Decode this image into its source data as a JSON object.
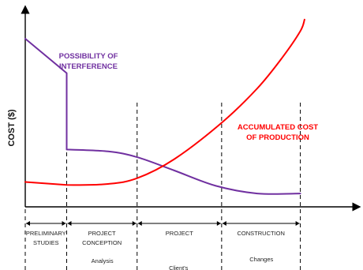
{
  "chart_data": {
    "type": "line",
    "ylabel": "COST ($)",
    "xlabel": "",
    "xlim": [
      0,
      4
    ],
    "ylim": [
      0,
      100
    ],
    "phases": [
      {
        "lines": [
          "PRELIMINARY",
          "STUDIES"
        ],
        "start": 0,
        "end": 0.5
      },
      {
        "lines": [
          "PROJECT",
          "CONCEPTION"
        ],
        "start": 0.5,
        "end": 1.35
      },
      {
        "lines": [
          "PROJECT"
        ],
        "start": 1.35,
        "end": 2.37
      },
      {
        "lines": [
          "CONSTRUCTION"
        ],
        "start": 2.37,
        "end": 3.32
      }
    ],
    "notes": [
      {
        "text": "Analysis",
        "x": 0.93
      },
      {
        "text": "Client's",
        "x": 1.85
      },
      {
        "text": "Changes",
        "x": 2.85
      }
    ],
    "series": [
      {
        "name": "POSSIBILITY OF INTERFERENCE",
        "label_lines": [
          "POSSIBILITY OF",
          "INTERFERENCE"
        ],
        "color": "#7030a0",
        "x": [
          0,
          0.5,
          0.5,
          0.5,
          1.0,
          1.35,
          1.8,
          2.3,
          2.8,
          3.32
        ],
        "y": [
          88,
          70,
          70,
          30,
          29,
          26,
          19,
          11,
          7,
          7
        ]
      },
      {
        "name": "ACCUMULATED COST OF PRODUCTION",
        "label_lines": [
          "ACCUMULATED COST",
          "OF PRODUCTION"
        ],
        "color": "#ff0000",
        "x": [
          0,
          0.5,
          1.0,
          1.35,
          1.8,
          2.37,
          2.8,
          3.1,
          3.32,
          3.37
        ],
        "y": [
          13,
          11.5,
          12,
          15,
          25,
          44,
          62,
          78,
          92,
          98
        ]
      }
    ]
  }
}
